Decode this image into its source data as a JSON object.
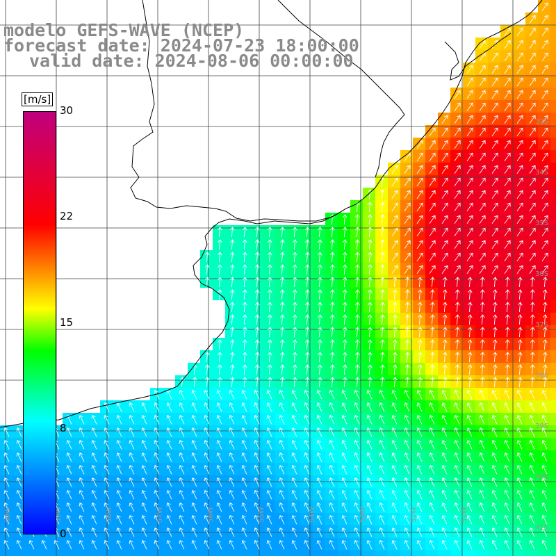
{
  "titles": {
    "model": "modelo GEFS-WAVE (NCEP)",
    "forecast": "forecast date: 2024-07-23 18:00:00",
    "valid": "valid date: 2024-08-06 00:00:00"
  },
  "colorbar": {
    "unit": "[m/s]",
    "ticks": [
      "30",
      "22",
      "15",
      "8",
      "0"
    ],
    "tick_values": [
      30,
      22,
      15,
      8,
      0
    ],
    "colors": [
      "#0000ff",
      "#00ffff",
      "#00ff00",
      "#ffff00",
      "#ff0000",
      "#c0007f"
    ],
    "color_values": [
      0,
      8,
      13,
      16,
      22,
      30
    ]
  },
  "map": {
    "lon_labels": [
      "60W",
      "59W",
      "58W",
      "57W",
      "56W",
      "55W",
      "54W",
      "53W",
      "52W",
      "51W"
    ],
    "lat_labels": [
      "33S",
      "34S",
      "35S",
      "36S",
      "37S",
      "38S",
      "39S",
      "40S",
      "41S"
    ],
    "field": "wind speed and direction"
  }
}
